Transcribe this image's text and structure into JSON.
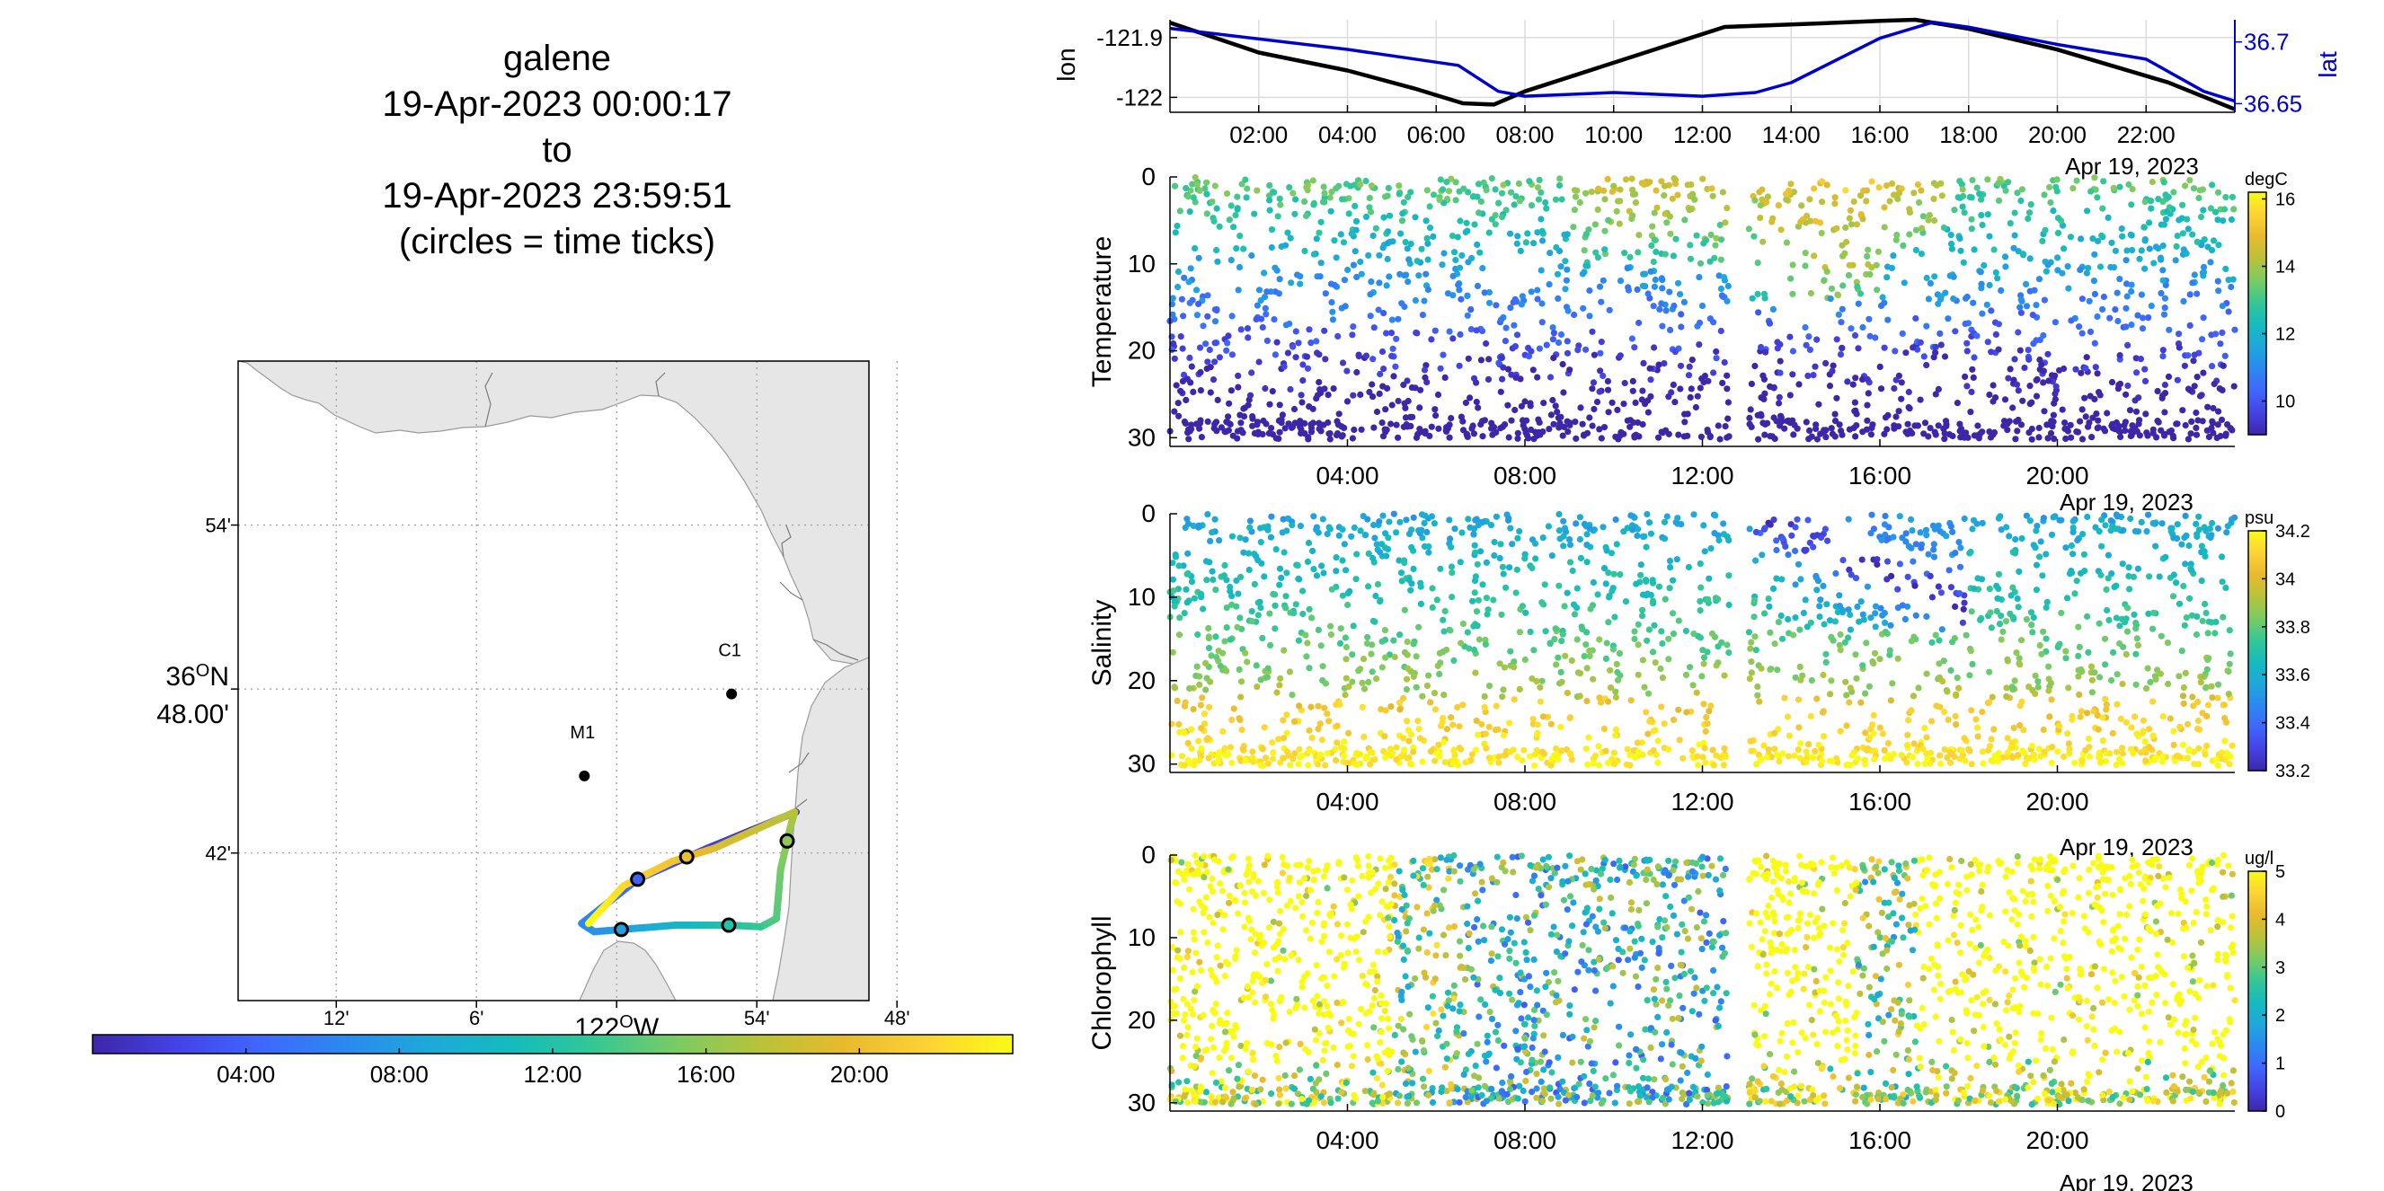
{
  "header": {
    "title_lines": [
      "galene",
      "19-Apr-2023 00:00:17",
      "to",
      "19-Apr-2023 23:59:51",
      "(circles = time ticks)"
    ]
  },
  "colors": {
    "parula": [
      "#3e26a8",
      "#4443e5",
      "#3f67fd",
      "#2b89f0",
      "#1ea8da",
      "#15bbbd",
      "#34c795",
      "#7bcb64",
      "#b9c239",
      "#e8ba2e",
      "#fcd334",
      "#f9fb15"
    ],
    "lon_line": "#000000",
    "lat_line": "#0000cd",
    "land": "#e6e6e6"
  },
  "chart_data": [
    {
      "type": "map",
      "panel": "track-map",
      "x_ticks": [
        {
          "label": "12'",
          "lon": -122.2
        },
        {
          "label": "6'",
          "lon": -122.1
        },
        {
          "label": "54'",
          "lon": -121.9
        },
        {
          "label": "48'",
          "lon": -121.8
        }
      ],
      "x_center_label": "122",
      "x_center_label_unit": "O",
      "x_center_label_dir": "W",
      "y_ticks": [
        {
          "label": "54'",
          "lat": 36.9
        },
        {
          "label": "42'",
          "lat": 36.7
        }
      ],
      "y_center_label_line1": "36",
      "y_center_label_unit": "O",
      "y_center_label_dir": "N",
      "y_center_label_line2": "48.00'",
      "xlim": [
        -122.27,
        -121.82
      ],
      "ylim": [
        36.61,
        37.0
      ],
      "stations": [
        {
          "name": "M1",
          "lon": -122.023,
          "lat": 36.747
        },
        {
          "name": "C1",
          "lon": -121.918,
          "lat": 36.797
        }
      ],
      "track": [
        {
          "hour": 0.0,
          "lon": -121.872,
          "lat": 36.725
        },
        {
          "hour": 2.0,
          "lon": -121.935,
          "lat": 36.703
        },
        {
          "hour": 4.0,
          "lon": -121.985,
          "lat": 36.684
        },
        {
          "hour": 6.5,
          "lon": -122.025,
          "lat": 36.657
        },
        {
          "hour": 7.0,
          "lon": -122.016,
          "lat": 36.652
        },
        {
          "hour": 10.0,
          "lon": -121.958,
          "lat": 36.656
        },
        {
          "hour": 12.0,
          "lon": -121.92,
          "lat": 36.656
        },
        {
          "hour": 13.0,
          "lon": -121.897,
          "lat": 36.655
        },
        {
          "hour": 14.0,
          "lon": -121.886,
          "lat": 36.66
        },
        {
          "hour": 15.0,
          "lon": -121.883,
          "lat": 36.69
        },
        {
          "hour": 16.5,
          "lon": -121.876,
          "lat": 36.716
        },
        {
          "hour": 17.2,
          "lon": -121.873,
          "lat": 36.725
        },
        {
          "hour": 19.0,
          "lon": -121.93,
          "lat": 36.703
        },
        {
          "hour": 20.5,
          "lon": -121.96,
          "lat": 36.695
        },
        {
          "hour": 22.0,
          "lon": -121.995,
          "lat": 36.68
        },
        {
          "hour": 24.0,
          "lon": -122.02,
          "lat": 36.657
        }
      ],
      "time_tick_hours": [
        4,
        8,
        12,
        16,
        20
      ]
    },
    {
      "type": "colorbar",
      "panel": "time-colorbar",
      "range_hours": [
        0,
        24
      ],
      "ticks": [
        {
          "label": "04:00",
          "hour": 4
        },
        {
          "label": "08:00",
          "hour": 8
        },
        {
          "label": "12:00",
          "hour": 12
        },
        {
          "label": "16:00",
          "hour": 16
        },
        {
          "label": "20:00",
          "hour": 20
        }
      ]
    },
    {
      "type": "line",
      "panel": "lon-lat",
      "xlim_hours": [
        0,
        24
      ],
      "x_ticks": [
        {
          "label": "02:00",
          "hour": 2
        },
        {
          "label": "04:00",
          "hour": 4
        },
        {
          "label": "06:00",
          "hour": 6
        },
        {
          "label": "08:00",
          "hour": 8
        },
        {
          "label": "10:00",
          "hour": 10
        },
        {
          "label": "12:00",
          "hour": 12
        },
        {
          "label": "14:00",
          "hour": 14
        },
        {
          "label": "16:00",
          "hour": 16
        },
        {
          "label": "18:00",
          "hour": 18
        },
        {
          "label": "20:00",
          "hour": 20
        },
        {
          "label": "22:00",
          "hour": 22
        }
      ],
      "x_date_label": "Apr 19, 2023",
      "ylabel_left": "lon",
      "ylim_left": [
        -122.025,
        -121.87
      ],
      "y_ticks_left": [
        {
          "label": "-121.9",
          "value": -121.9
        },
        {
          "label": "-122",
          "value": -122.0
        }
      ],
      "ylabel_right": "lat",
      "ylim_right": [
        36.643,
        36.718
      ],
      "y_ticks_right": [
        {
          "label": "36.7",
          "value": 36.7
        },
        {
          "label": "36.65",
          "value": 36.65
        }
      ],
      "series": [
        {
          "name": "lon",
          "axis": "left",
          "points": [
            [
              0,
              -121.875
            ],
            [
              2,
              -121.925
            ],
            [
              4,
              -121.955
            ],
            [
              5.5,
              -121.985
            ],
            [
              6.6,
              -122.01
            ],
            [
              7.3,
              -122.012
            ],
            [
              8,
              -121.99
            ],
            [
              12.5,
              -121.882
            ],
            [
              14,
              -121.878
            ],
            [
              16,
              -121.872
            ],
            [
              16.8,
              -121.87
            ],
            [
              18,
              -121.885
            ],
            [
              20,
              -121.92
            ],
            [
              22.5,
              -121.975
            ],
            [
              24,
              -122.02
            ]
          ]
        },
        {
          "name": "lat",
          "axis": "right",
          "points": [
            [
              0,
              36.711
            ],
            [
              4,
              36.694
            ],
            [
              6.5,
              36.681
            ],
            [
              7.4,
              36.66
            ],
            [
              8,
              36.656
            ],
            [
              10,
              36.659
            ],
            [
              12,
              36.656
            ],
            [
              13.2,
              36.659
            ],
            [
              14,
              36.667
            ],
            [
              16,
              36.703
            ],
            [
              17.2,
              36.716
            ],
            [
              18,
              36.712
            ],
            [
              20,
              36.698
            ],
            [
              22,
              36.686
            ],
            [
              23.3,
              36.66
            ],
            [
              24,
              36.652
            ]
          ]
        }
      ]
    },
    {
      "type": "scatter",
      "panel": "temperature",
      "variable": "temperature",
      "ylabel": "Temperature",
      "units": "degC",
      "ylim": [
        0,
        31
      ],
      "y_ticks": [
        0,
        10,
        20,
        30
      ],
      "x_ticks": [
        {
          "label": "04:00",
          "hour": 4
        },
        {
          "label": "08:00",
          "hour": 8
        },
        {
          "label": "12:00",
          "hour": 12
        },
        {
          "label": "16:00",
          "hour": 16
        },
        {
          "label": "20:00",
          "hour": 20
        }
      ],
      "x_date_label": "Apr 19, 2023",
      "clim": [
        9,
        16.2
      ],
      "c_ticks": [
        10,
        12,
        14,
        16
      ],
      "gap_hours": [
        12.6,
        13.05
      ]
    },
    {
      "type": "scatter",
      "panel": "salinity",
      "variable": "salinity",
      "ylabel": "Salinity",
      "units": "psu",
      "ylim": [
        0,
        31
      ],
      "y_ticks": [
        0,
        10,
        20,
        30
      ],
      "x_ticks": [
        {
          "label": "04:00",
          "hour": 4
        },
        {
          "label": "08:00",
          "hour": 8
        },
        {
          "label": "12:00",
          "hour": 12
        },
        {
          "label": "16:00",
          "hour": 16
        },
        {
          "label": "20:00",
          "hour": 20
        }
      ],
      "x_date_label": "Apr 19, 2023",
      "clim": [
        33.2,
        34.2
      ],
      "c_ticks": [
        33.2,
        33.4,
        33.6,
        33.8,
        34,
        34.2
      ],
      "gap_hours": [
        12.6,
        13.05
      ]
    },
    {
      "type": "scatter",
      "panel": "chlorophyll",
      "variable": "chlorophyll",
      "ylabel": "Chlorophyll",
      "units": "ug/l",
      "ylim": [
        0,
        31
      ],
      "y_ticks": [
        0,
        10,
        20,
        30
      ],
      "x_ticks": [
        {
          "label": "04:00",
          "hour": 4
        },
        {
          "label": "08:00",
          "hour": 8
        },
        {
          "label": "12:00",
          "hour": 12
        },
        {
          "label": "16:00",
          "hour": 16
        },
        {
          "label": "20:00",
          "hour": 20
        }
      ],
      "x_date_label": "Apr 19, 2023",
      "clim": [
        0,
        5
      ],
      "c_ticks": [
        0,
        1,
        2,
        3,
        4,
        5
      ],
      "gap_hours": [
        12.6,
        13.05
      ]
    }
  ]
}
